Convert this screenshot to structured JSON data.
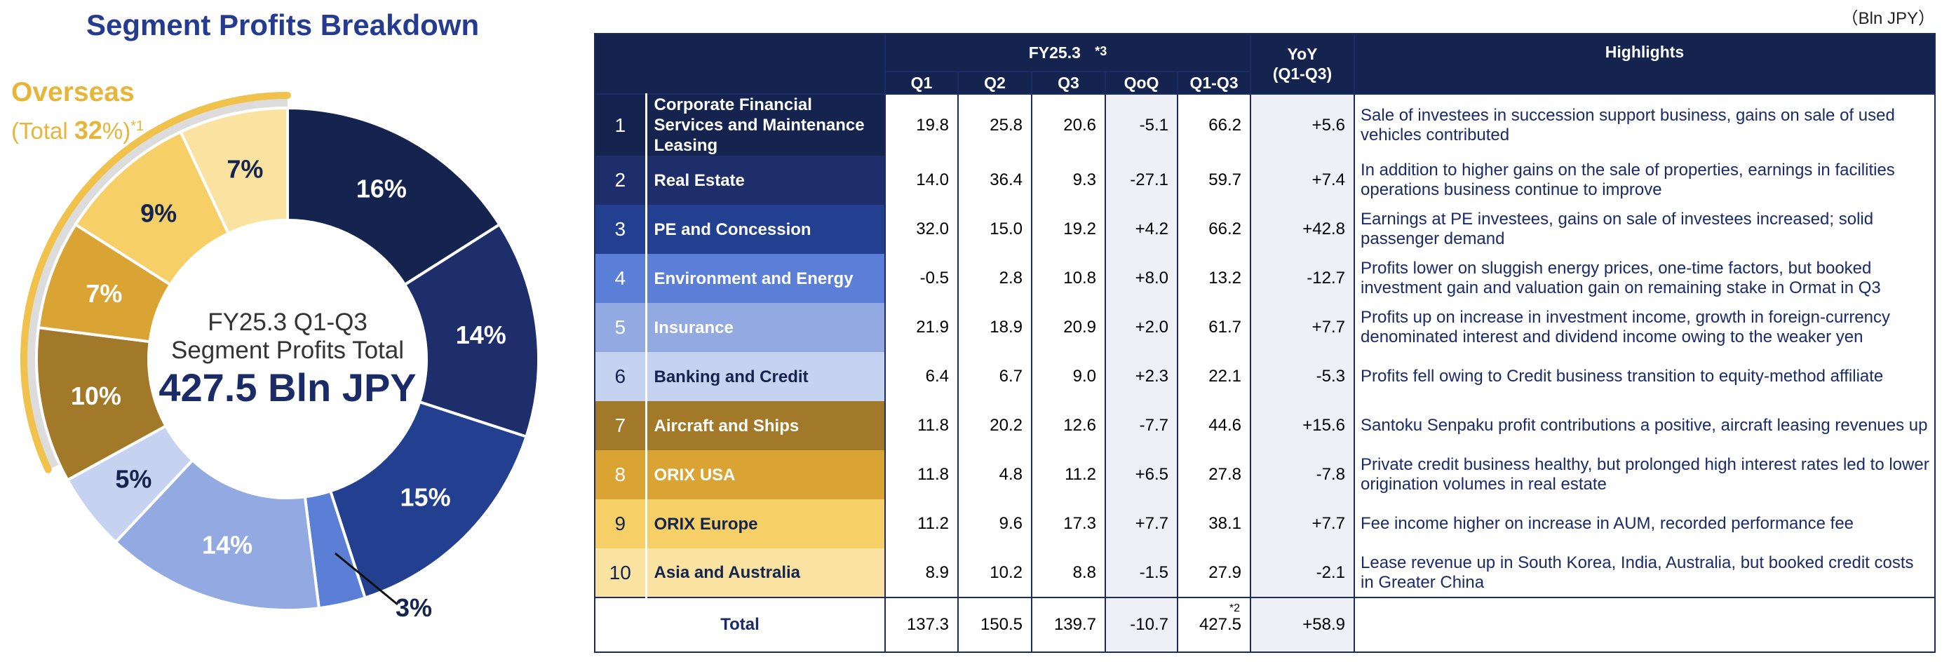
{
  "title": "Segment Profits Breakdown",
  "unit": "（Bln JPY）",
  "overseas": {
    "label": "Overseas",
    "total_prefix": "(Total ",
    "total_value": "32",
    "total_suffix": "%)",
    "note": "*1"
  },
  "center": {
    "line1": "FY25.3 Q1-Q3",
    "line2": "Segment Profits Total",
    "line3": "427.5 Bln JPY"
  },
  "colors": {
    "seg1": "#14244f",
    "seg2": "#1e2e6b",
    "seg3": "#22408f",
    "seg4": "#5b7fd6",
    "seg5": "#92a9e2",
    "seg6": "#c5d3f0",
    "seg7": "#a27928",
    "seg8": "#d9a433",
    "seg9": "#f6cf66",
    "seg10": "#fae3a1",
    "overseas_arc": "#f0c24b",
    "header": "#14244f"
  },
  "chart_data": {
    "type": "pie",
    "title": "Segment Profits Breakdown",
    "categories": [
      "Corporate Financial Services and Maintenance Leasing",
      "Real Estate",
      "PE and Concession",
      "Environment and Energy",
      "Insurance",
      "Banking and Credit",
      "Aircraft and Ships",
      "ORIX USA",
      "ORIX Europe",
      "Asia and Australia"
    ],
    "values": [
      16,
      14,
      15,
      3,
      14,
      5,
      10,
      7,
      9,
      7
    ],
    "labels": [
      "16%",
      "14%",
      "15%",
      "3%",
      "14%",
      "5%",
      "10%",
      "7%",
      "9%",
      "7%"
    ]
  },
  "table": {
    "header": {
      "fy": "FY25.3",
      "fy_note": "*3",
      "yoy": "YoY",
      "yoy_sub": "(Q1-Q3)",
      "highlights": "Highlights",
      "q1": "Q1",
      "q2": "Q2",
      "q3": "Q3",
      "qoq": "QoQ",
      "q1q3": "Q1-Q3"
    },
    "rows": [
      {
        "num": "1",
        "name": "Corporate Financial Services and Maintenance Leasing",
        "q1": "19.8",
        "q2": "25.8",
        "q3": "20.6",
        "qoq": "-5.1",
        "q1q3": "66.2",
        "yoy": "+5.6",
        "highlight": "Sale of investees in succession support business, gains on sale of used vehicles contributed"
      },
      {
        "num": "2",
        "name": "Real Estate",
        "q1": "14.0",
        "q2": "36.4",
        "q3": "9.3",
        "qoq": "-27.1",
        "q1q3": "59.7",
        "yoy": "+7.4",
        "highlight": "In addition to higher gains on the sale of properties, earnings in facilities operations business continue to improve"
      },
      {
        "num": "3",
        "name": "PE and Concession",
        "q1": "32.0",
        "q2": "15.0",
        "q3": "19.2",
        "qoq": "+4.2",
        "q1q3": "66.2",
        "yoy": "+42.8",
        "highlight": "Earnings at PE investees, gains on sale of investees increased; solid passenger demand"
      },
      {
        "num": "4",
        "name": "Environment and Energy",
        "q1": "-0.5",
        "q2": "2.8",
        "q3": "10.8",
        "qoq": "+8.0",
        "q1q3": "13.2",
        "yoy": "-12.7",
        "highlight": "Profits lower on sluggish energy prices, one-time factors, but booked investment gain and valuation gain on remaining stake in Ormat in Q3"
      },
      {
        "num": "5",
        "name": "Insurance",
        "q1": "21.9",
        "q2": "18.9",
        "q3": "20.9",
        "qoq": "+2.0",
        "q1q3": "61.7",
        "yoy": "+7.7",
        "highlight": "Profits up on increase in investment income, growth in foreign-currency denominated interest and dividend income owing to the weaker yen"
      },
      {
        "num": "6",
        "name": "Banking and Credit",
        "q1": "6.4",
        "q2": "6.7",
        "q3": "9.0",
        "qoq": "+2.3",
        "q1q3": "22.1",
        "yoy": "-5.3",
        "highlight": "Profits fell owing to Credit business transition to equity-method affiliate"
      },
      {
        "num": "7",
        "name": "Aircraft and Ships",
        "q1": "11.8",
        "q2": "20.2",
        "q3": "12.6",
        "qoq": "-7.7",
        "q1q3": "44.6",
        "yoy": "+15.6",
        "highlight": "Santoku Senpaku profit contributions a positive, aircraft leasing revenues up"
      },
      {
        "num": "8",
        "name": "ORIX USA",
        "q1": "11.8",
        "q2": "4.8",
        "q3": "11.2",
        "qoq": "+6.5",
        "q1q3": "27.8",
        "yoy": "-7.8",
        "highlight": "Private credit business healthy, but prolonged high interest rates led to lower origination volumes in real estate"
      },
      {
        "num": "9",
        "name": "ORIX Europe",
        "q1": "11.2",
        "q2": "9.6",
        "q3": "17.3",
        "qoq": "+7.7",
        "q1q3": "38.1",
        "yoy": "+7.7",
        "highlight": "Fee income higher on increase in AUM, recorded performance fee"
      },
      {
        "num": "10",
        "name": "Asia and Australia",
        "q1": "8.9",
        "q2": "10.2",
        "q3": "8.8",
        "qoq": "-1.5",
        "q1q3": "27.9",
        "yoy": "-2.1",
        "highlight": "Lease revenue up in South Korea, India, Australia, but booked credit costs in Greater China"
      }
    ],
    "total": {
      "label": "Total",
      "q1": "137.3",
      "q2": "150.5",
      "q3": "139.7",
      "qoq": "-10.7",
      "q1q3": "427.5",
      "q1q3_note": "*2",
      "yoy": "+58.9"
    }
  }
}
